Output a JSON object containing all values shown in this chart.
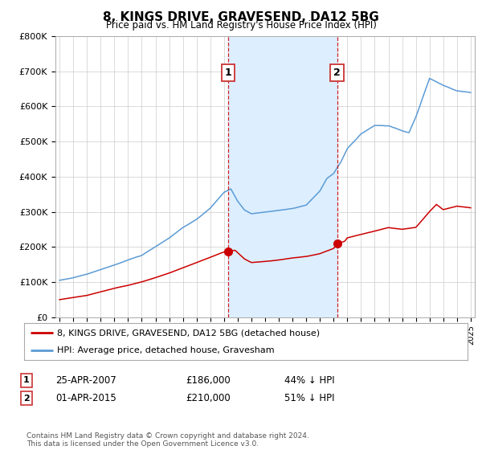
{
  "title": "8, KINGS DRIVE, GRAVESEND, DA12 5BG",
  "subtitle": "Price paid vs. HM Land Registry's House Price Index (HPI)",
  "ylim": [
    0,
    800000
  ],
  "yticks": [
    0,
    100000,
    200000,
    300000,
    400000,
    500000,
    600000,
    700000,
    800000
  ],
  "ytick_labels": [
    "£0",
    "£100K",
    "£200K",
    "£300K",
    "£400K",
    "£500K",
    "£600K",
    "£700K",
    "£800K"
  ],
  "hpi_color": "#5b9bd5",
  "hpi_fill_color": "#ddeeff",
  "price_color": "#cc0000",
  "marker_color": "#cc0000",
  "vline_color": "#cc0000",
  "legend_label_price": "8, KINGS DRIVE, GRAVESEND, DA12 5BG (detached house)",
  "legend_label_hpi": "HPI: Average price, detached house, Gravesham",
  "transaction1_date": "25-APR-2007",
  "transaction1_price": 186000,
  "transaction1_price_str": "£186,000",
  "transaction1_pct": "44% ↓ HPI",
  "transaction1_label": "1",
  "transaction1_year": 2007.32,
  "transaction2_date": "01-APR-2015",
  "transaction2_price": 210000,
  "transaction2_price_str": "£210,000",
  "transaction2_pct": "51% ↓ HPI",
  "transaction2_label": "2",
  "transaction2_year": 2015.25,
  "footer": "Contains HM Land Registry data © Crown copyright and database right 2024.\nThis data is licensed under the Open Government Licence v3.0.",
  "background_color": "#ffffff",
  "grid_color": "#cccccc",
  "xlim_start": 1995,
  "xlim_end": 2025
}
